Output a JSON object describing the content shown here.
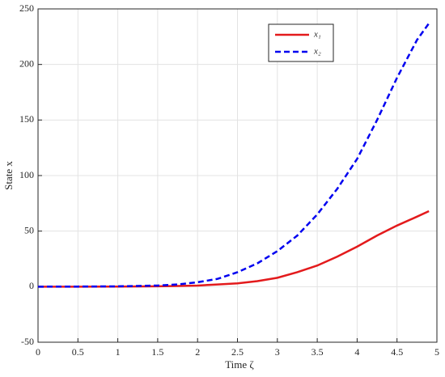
{
  "chart_data": {
    "type": "line",
    "xlabel": "Time ζ",
    "ylabel": "State x",
    "x": [
      0,
      0.5,
      1,
      1.5,
      1.75,
      2,
      2.25,
      2.5,
      2.75,
      3,
      3.25,
      3.5,
      3.75,
      4,
      4.25,
      4.5,
      4.75,
      4.9
    ],
    "series": [
      {
        "name": "x₁",
        "color": "#e31a1c",
        "linestyle": "solid",
        "values": [
          0,
          0,
          0.1,
          0.3,
          0.6,
          1,
          2,
          3,
          5,
          8,
          13,
          19,
          27,
          36,
          46,
          55,
          63,
          68
        ]
      },
      {
        "name": "x₂",
        "color": "#0000f0",
        "linestyle": "dashed",
        "values": [
          0,
          0.1,
          0.3,
          1,
          2,
          4,
          7,
          13,
          21,
          32,
          46,
          65,
          88,
          115,
          150,
          188,
          222,
          237
        ]
      }
    ],
    "xlim": [
      0,
      5
    ],
    "xticks": [
      0,
      0.5,
      1,
      1.5,
      2,
      2.5,
      3,
      3.5,
      4,
      4.5,
      5
    ],
    "ylim": [
      -50,
      250
    ],
    "yticks": [
      -50,
      0,
      50,
      100,
      150,
      200,
      250
    ],
    "grid": true,
    "legend": "upper-right"
  }
}
